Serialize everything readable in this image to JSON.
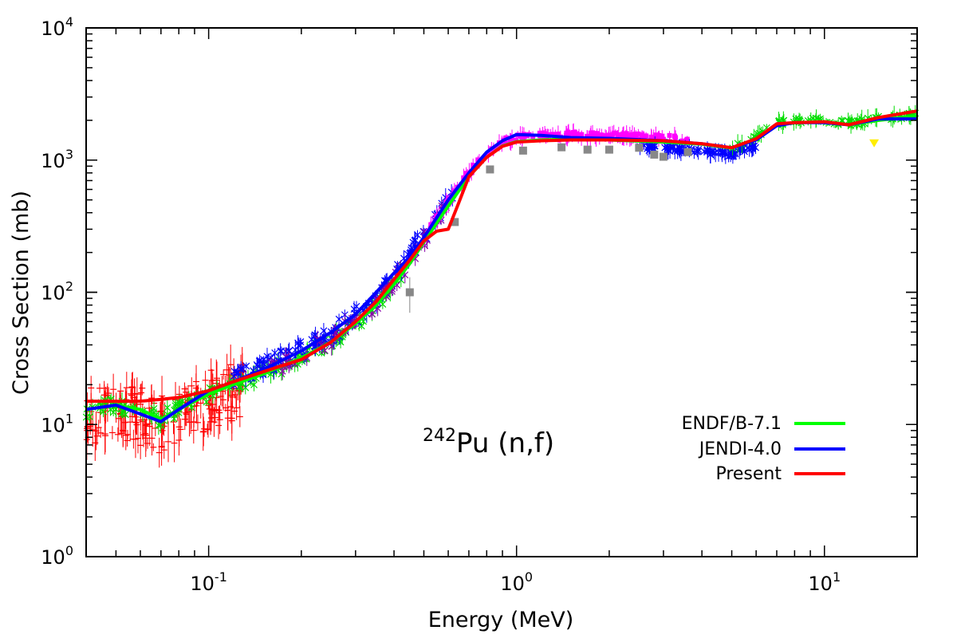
{
  "chart_data": {
    "type": "line",
    "x_scale": "log",
    "y_scale": "log",
    "xlabel": "Energy (MeV)",
    "ylabel": "Cross Section (mb)",
    "xlim": [
      0.04,
      20
    ],
    "ylim": [
      1,
      10000
    ],
    "x_ticks": [
      {
        "value": 0.1,
        "base": "10",
        "exp": "-1"
      },
      {
        "value": 1,
        "base": "10",
        "exp": "0"
      },
      {
        "value": 10,
        "base": "10",
        "exp": "1"
      }
    ],
    "y_ticks": [
      {
        "value": 1,
        "base": "10",
        "exp": "0"
      },
      {
        "value": 10,
        "base": "10",
        "exp": "1"
      },
      {
        "value": 100,
        "base": "10",
        "exp": "2"
      },
      {
        "value": 1000,
        "base": "10",
        "exp": "3"
      },
      {
        "value": 10000,
        "base": "10",
        "exp": "4"
      }
    ],
    "annotation": {
      "mass": "242",
      "text": "Pu (n,f)"
    },
    "legend_position": "bottom-right",
    "series": [
      {
        "name": "ENDF/B-7.1",
        "color": "#00ff00",
        "x": [
          0.04,
          0.05,
          0.06,
          0.07,
          0.08,
          0.1,
          0.12,
          0.15,
          0.2,
          0.25,
          0.3,
          0.35,
          0.4,
          0.45,
          0.5,
          0.6,
          0.7,
          0.8,
          0.9,
          1.0,
          1.2,
          1.5,
          2.0,
          3.0,
          4.0,
          5.0,
          6.0,
          7.0,
          8.0,
          10.0,
          12.0,
          15.0,
          20.0
        ],
        "y": [
          13,
          14,
          13,
          11,
          13,
          17,
          20,
          24,
          32,
          42,
          58,
          80,
          115,
          165,
          240,
          450,
          750,
          1050,
          1280,
          1380,
          1420,
          1440,
          1420,
          1370,
          1320,
          1230,
          1450,
          1850,
          1920,
          1950,
          1850,
          2000,
          2150
        ]
      },
      {
        "name": "JENDI-4.0",
        "color": "#0000ff",
        "x": [
          0.04,
          0.05,
          0.06,
          0.07,
          0.08,
          0.1,
          0.12,
          0.15,
          0.2,
          0.25,
          0.3,
          0.35,
          0.4,
          0.45,
          0.5,
          0.6,
          0.7,
          0.8,
          0.9,
          1.0,
          1.2,
          1.5,
          2.0,
          3.0,
          4.0,
          5.0,
          6.0,
          7.0,
          8.0,
          10.0,
          12.0,
          15.0,
          20.0
        ],
        "y": [
          13,
          14,
          12,
          10.5,
          13,
          18,
          21,
          26,
          36,
          50,
          68,
          100,
          140,
          185,
          260,
          500,
          800,
          1150,
          1400,
          1560,
          1540,
          1480,
          1460,
          1400,
          1330,
          1240,
          1420,
          1820,
          1920,
          1920,
          1850,
          2050,
          2050
        ]
      },
      {
        "name": "Present",
        "color": "#ff0000",
        "x": [
          0.04,
          0.05,
          0.06,
          0.07,
          0.08,
          0.1,
          0.12,
          0.15,
          0.2,
          0.25,
          0.3,
          0.35,
          0.4,
          0.45,
          0.5,
          0.55,
          0.6,
          0.65,
          0.7,
          0.8,
          0.9,
          1.0,
          1.2,
          1.5,
          2.0,
          3.0,
          4.0,
          5.0,
          6.0,
          7.0,
          8.0,
          10.0,
          12.0,
          15.0,
          20.0
        ],
        "y": [
          15,
          15,
          15,
          15.5,
          16,
          18,
          21,
          25,
          31,
          42,
          60,
          85,
          125,
          175,
          245,
          290,
          300,
          480,
          750,
          1050,
          1270,
          1370,
          1400,
          1420,
          1420,
          1400,
          1330,
          1240,
          1450,
          1880,
          1920,
          1950,
          1850,
          2100,
          2350
        ]
      }
    ]
  }
}
